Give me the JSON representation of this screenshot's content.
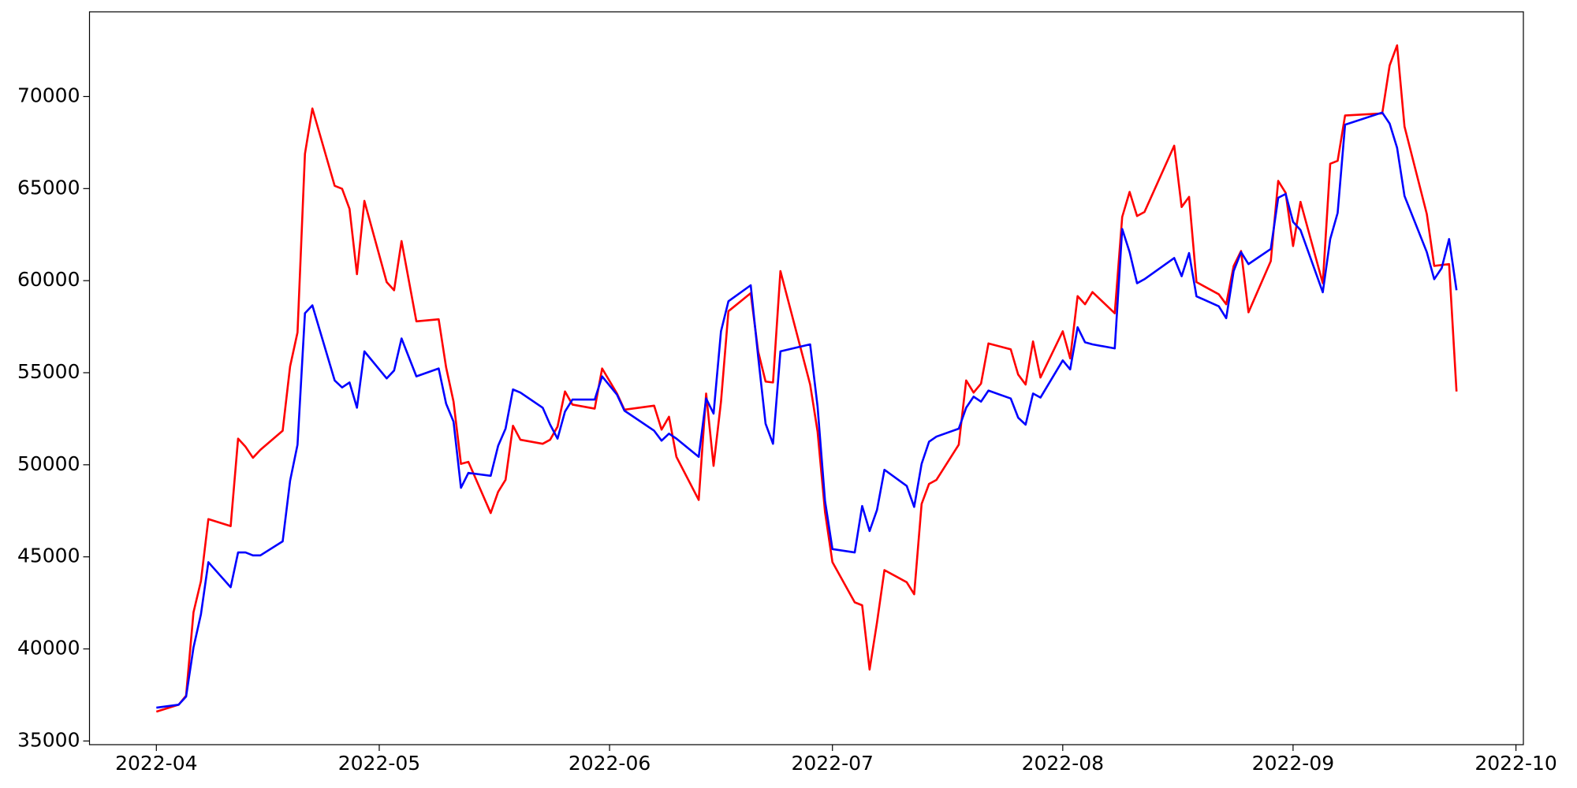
{
  "chart_data": {
    "type": "line",
    "x": [
      "2022-04-01",
      "2022-04-04",
      "2022-04-05",
      "2022-04-06",
      "2022-04-07",
      "2022-04-08",
      "2022-04-11",
      "2022-04-12",
      "2022-04-13",
      "2022-04-14",
      "2022-04-15",
      "2022-04-18",
      "2022-04-19",
      "2022-04-20",
      "2022-04-21",
      "2022-04-22",
      "2022-04-25",
      "2022-04-26",
      "2022-04-27",
      "2022-04-28",
      "2022-04-29",
      "2022-05-02",
      "2022-05-03",
      "2022-05-04",
      "2022-05-06",
      "2022-05-09",
      "2022-05-10",
      "2022-05-11",
      "2022-05-12",
      "2022-05-13",
      "2022-05-16",
      "2022-05-17",
      "2022-05-18",
      "2022-05-19",
      "2022-05-20",
      "2022-05-23",
      "2022-05-24",
      "2022-05-25",
      "2022-05-26",
      "2022-05-27",
      "2022-05-30",
      "2022-05-31",
      "2022-06-02",
      "2022-06-03",
      "2022-06-07",
      "2022-06-08",
      "2022-06-09",
      "2022-06-10",
      "2022-06-13",
      "2022-06-14",
      "2022-06-15",
      "2022-06-16",
      "2022-06-17",
      "2022-06-20",
      "2022-06-21",
      "2022-06-22",
      "2022-06-23",
      "2022-06-24",
      "2022-06-28",
      "2022-06-29",
      "2022-06-30",
      "2022-07-01",
      "2022-07-04",
      "2022-07-05",
      "2022-07-06",
      "2022-07-07",
      "2022-07-08",
      "2022-07-11",
      "2022-07-12",
      "2022-07-13",
      "2022-07-14",
      "2022-07-15",
      "2022-07-18",
      "2022-07-19",
      "2022-07-20",
      "2022-07-21",
      "2022-07-22",
      "2022-07-25",
      "2022-07-26",
      "2022-07-27",
      "2022-07-28",
      "2022-07-29",
      "2022-08-01",
      "2022-08-02",
      "2022-08-03",
      "2022-08-04",
      "2022-08-05",
      "2022-08-08",
      "2022-08-09",
      "2022-08-10",
      "2022-08-11",
      "2022-08-12",
      "2022-08-16",
      "2022-08-17",
      "2022-08-18",
      "2022-08-19",
      "2022-08-22",
      "2022-08-23",
      "2022-08-24",
      "2022-08-25",
      "2022-08-26",
      "2022-08-29",
      "2022-08-30",
      "2022-08-31",
      "2022-09-01",
      "2022-09-02",
      "2022-09-05",
      "2022-09-06",
      "2022-09-07",
      "2022-09-08",
      "2022-09-13",
      "2022-09-14",
      "2022-09-15",
      "2022-09-16",
      "2022-09-19",
      "2022-09-20",
      "2022-09-21",
      "2022-09-22",
      "2022-09-23"
    ],
    "series": [
      {
        "color": "#ff0000",
        "values": [
          36590,
          36970,
          37460,
          41990,
          43680,
          47050,
          46670,
          51420,
          50980,
          50380,
          50810,
          51850,
          55340,
          57190,
          66890,
          69350,
          65150,
          64990,
          63900,
          60350,
          64330,
          59920,
          59480,
          62150,
          57790,
          57900,
          55290,
          53430,
          50050,
          50160,
          47380,
          48530,
          49180,
          52120,
          51360,
          51140,
          51360,
          52070,
          53980,
          53270,
          53050,
          55230,
          53870,
          52990,
          53210,
          51910,
          52610,
          50430,
          48090,
          53870,
          49940,
          53430,
          58340,
          59320,
          56160,
          54520,
          54470,
          60520,
          54360,
          51800,
          47440,
          44710,
          42530,
          42370,
          38880,
          41440,
          44280,
          43620,
          42970,
          47870,
          48960,
          49180,
          51090,
          54580,
          53920,
          54410,
          56590,
          56270,
          54900,
          54360,
          56700,
          54740,
          57250,
          55780,
          59160,
          58720,
          59380,
          58230,
          63460,
          64820,
          63510,
          63730,
          67330,
          64000,
          64550,
          59920,
          59260,
          58720,
          60790,
          61610,
          58280,
          61060,
          65420,
          64770,
          61880,
          64280,
          59860,
          66350,
          66510,
          68970,
          69080,
          71690,
          72780,
          68370,
          63620,
          60800,
          60850,
          60900,
          53980
        ]
      },
      {
        "color": "#0000ff",
        "values": [
          36810,
          36970,
          37410,
          40080,
          41880,
          44710,
          43350,
          45240,
          45240,
          45080,
          45080,
          45840,
          49130,
          51090,
          58230,
          58660,
          54580,
          54200,
          54470,
          53100,
          56160,
          54690,
          55120,
          56860,
          54800,
          55230,
          53320,
          52340,
          48750,
          49560,
          49400,
          51030,
          51960,
          54090,
          53920,
          53100,
          52180,
          51420,
          52890,
          53540,
          53540,
          54800,
          53810,
          52940,
          51850,
          51310,
          51690,
          51420,
          50430,
          53600,
          52780,
          57250,
          58880,
          59750,
          55880,
          52230,
          51140,
          56160,
          56540,
          53160,
          48040,
          45420,
          45240,
          47760,
          46400,
          47550,
          49730,
          48850,
          47710,
          50050,
          51250,
          51530,
          51960,
          53100,
          53700,
          53430,
          54030,
          53600,
          52560,
          52180,
          53870,
          53650,
          55670,
          55180,
          57470,
          56650,
          56540,
          56320,
          62810,
          61550,
          59860,
          60080,
          61230,
          60240,
          61500,
          59150,
          58610,
          57960,
          60520,
          61550,
          60900,
          61720,
          64500,
          64710,
          63190,
          62750,
          59370,
          62260,
          63680,
          68470,
          69130,
          68530,
          67220,
          64600,
          61550,
          60080,
          60680,
          62260,
          59480
        ]
      }
    ],
    "xlim": [
      "2022-03-23",
      "2022-10-02"
    ],
    "xticks": [
      {
        "value": "2022-04-01",
        "label": "2022-04"
      },
      {
        "value": "2022-05-01",
        "label": "2022-05"
      },
      {
        "value": "2022-06-01",
        "label": "2022-06"
      },
      {
        "value": "2022-07-01",
        "label": "2022-07"
      },
      {
        "value": "2022-08-01",
        "label": "2022-08"
      },
      {
        "value": "2022-09-01",
        "label": "2022-09"
      },
      {
        "value": "2022-10-01",
        "label": "2022-10"
      }
    ],
    "ylim": [
      34800,
      74600
    ],
    "yticks": [
      35000,
      40000,
      45000,
      50000,
      55000,
      60000,
      65000,
      70000
    ]
  }
}
